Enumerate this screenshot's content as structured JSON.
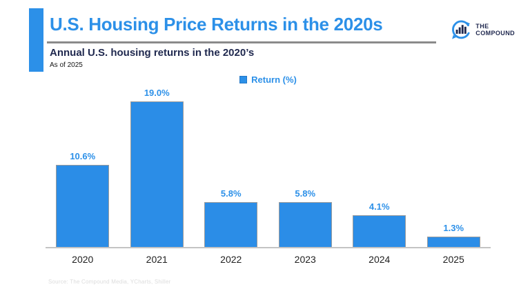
{
  "header": {
    "title": "U.S. Housing Price Returns in the 2020s",
    "subtitle": "Annual U.S. housing returns in the 2020’s",
    "as_of": "As of 2025",
    "logo": {
      "icon": "bar-chart-speech-bubble-icon",
      "line1": "THE",
      "line2": "COMPOUND"
    }
  },
  "chart_data": {
    "type": "bar",
    "categories": [
      "2020",
      "2021",
      "2022",
      "2023",
      "2024",
      "2025"
    ],
    "values": [
      10.6,
      19.0,
      5.8,
      5.8,
      4.1,
      1.3
    ],
    "value_labels": [
      "10.6%",
      "19.0%",
      "5.8%",
      "5.8%",
      "4.1%",
      "1.3%"
    ],
    "title": "Annual U.S. housing returns in the 2020’s",
    "xlabel": "",
    "ylabel": "",
    "ylim": [
      0,
      20
    ],
    "grid": false,
    "legend_position": "top-center",
    "legend": [
      {
        "label": "Return (%)",
        "color": "#2B8DE7"
      }
    ]
  },
  "footer": {
    "source": "Source: The Compound Media, YCharts, Shiller"
  },
  "colors": {
    "accent_blue": "#2C90E8",
    "bar_fill": "#2B8DE7",
    "bar_border": "#9b9b9b",
    "navy": "#20294F",
    "divider_gray": "#8a8a8a",
    "axis_gray": "#C4C4C4",
    "source_gray": "#DCDCDC"
  }
}
